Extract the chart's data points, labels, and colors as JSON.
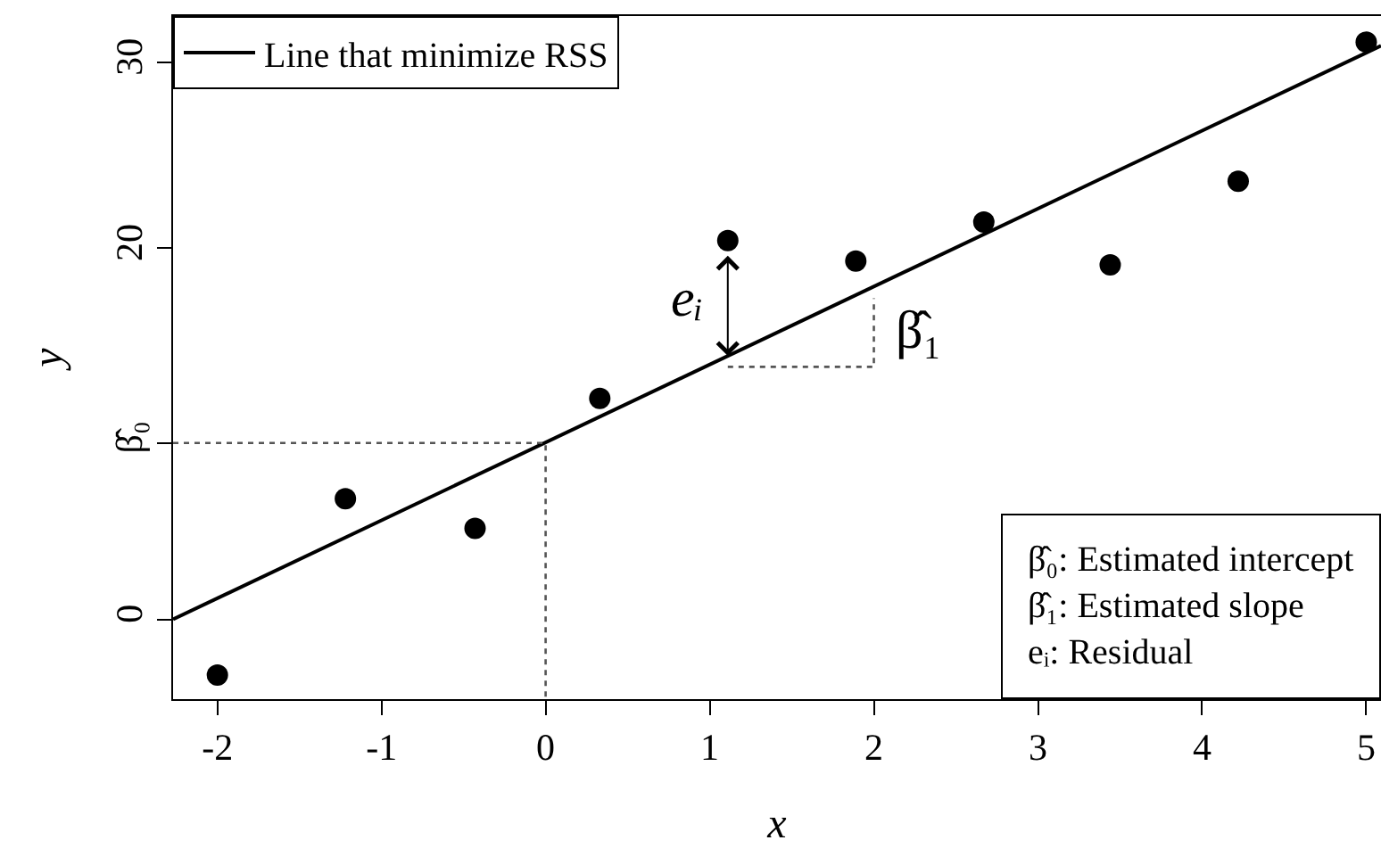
{
  "chart_data": {
    "type": "scatter",
    "xlabel": "x",
    "ylabel": "y",
    "xlim": [
      -2.27,
      5.09
    ],
    "ylim": [
      -4.3,
      32.5
    ],
    "xticks": [
      -2,
      -1,
      0,
      1,
      2,
      3,
      4,
      5
    ],
    "yticks": [
      0,
      {
        "value": 9.5,
        "label": "β̂₀"
      },
      20,
      30
    ],
    "grid": false,
    "legend": "top left",
    "series": [
      {
        "type": "line",
        "name": "Line that minimize RSS",
        "color": "#000000",
        "line_style": "solid",
        "x": [
          -2.27,
          5.09
        ],
        "values": [
          0,
          30.9
        ]
      },
      {
        "type": "line",
        "color": "#555555",
        "line_style": "dotted",
        "x": [
          -2.27,
          0,
          0
        ],
        "values": [
          9.5,
          9.5,
          -4.3
        ]
      },
      {
        "type": "line",
        "color": "#555555",
        "line_style": "dotted",
        "x": [
          1.11,
          2,
          2
        ],
        "values": [
          13.6,
          13.6,
          17.3
        ]
      },
      {
        "marker": "circle",
        "color": "#000000",
        "x": [
          -2,
          -1.22,
          -0.43,
          0.33,
          1.11,
          1.89,
          2.67,
          3.44,
          4.22,
          5
        ],
        "values": [
          -3.0,
          6.5,
          4.9,
          11.9,
          20.4,
          19.3,
          21.4,
          19.1,
          23.6,
          31.1
        ]
      }
    ],
    "annotations": [
      "eᵢ",
      {
        "text": "β̂₁",
        "x": 2,
        "y": 15.5
      },
      "β̂₀: Estimated intercept",
      "β̂₁: Estimated slope",
      "eᵢ: Residual"
    ]
  }
}
